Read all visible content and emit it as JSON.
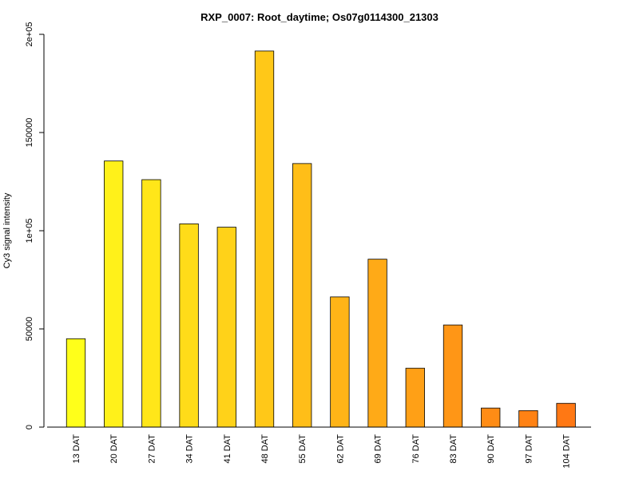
{
  "chart_data": {
    "type": "bar",
    "title": "RXP_0007: Root_daytime; Os07g0114300_21303",
    "xlabel": "",
    "ylabel": "Cy3 signal intensity",
    "ylim": [
      0,
      200000
    ],
    "yticks": [
      0,
      50000,
      100000,
      150000,
      200000
    ],
    "ytick_labels": [
      "0",
      "50000",
      "1e+05",
      "150000",
      "2e+05"
    ],
    "grid": false,
    "legend": "none",
    "categories": [
      "13 DAT",
      "20 DAT",
      "27 DAT",
      "34 DAT",
      "41 DAT",
      "48 DAT",
      "55 DAT",
      "62 DAT",
      "69 DAT",
      "76 DAT",
      "83 DAT",
      "90 DAT",
      "97 DAT",
      "104 DAT"
    ],
    "values": [
      45000,
      135500,
      126000,
      103500,
      101800,
      191500,
      134200,
      66300,
      85500,
      30000,
      52000,
      9700,
      8400,
      12100
    ],
    "colors": [
      "#FFFF1A",
      "#FFF11A",
      "#FFE619",
      "#FFDC19",
      "#FFD219",
      "#FFC818",
      "#FFBE18",
      "#FFB417",
      "#FFAA17",
      "#FFA016",
      "#FF9616",
      "#FF8C15",
      "#FF8214",
      "#FF7814"
    ]
  }
}
